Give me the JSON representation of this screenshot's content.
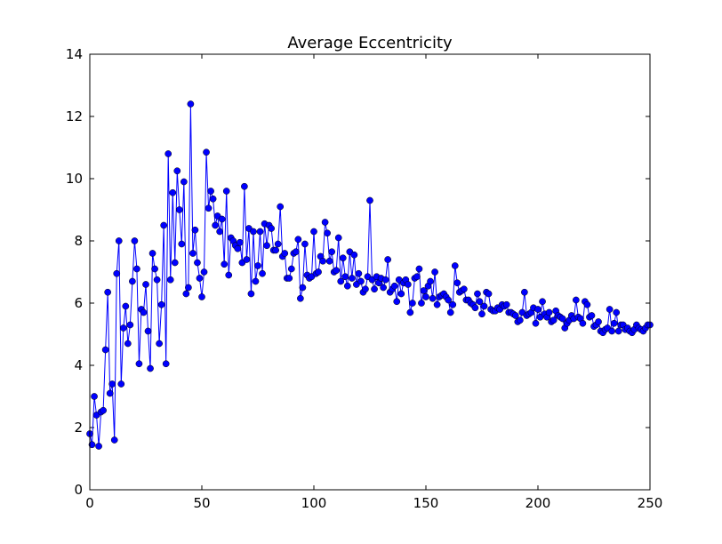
{
  "chart_data": {
    "type": "line",
    "title": "Average Eccentricity",
    "x": [
      0,
      1,
      2,
      3,
      4,
      5,
      6,
      7,
      8,
      9,
      10,
      11,
      12,
      13,
      14,
      15,
      16,
      17,
      18,
      19,
      20,
      21,
      22,
      23,
      24,
      25,
      26,
      27,
      28,
      29,
      30,
      31,
      32,
      33,
      34,
      35,
      36,
      37,
      38,
      39,
      40,
      41,
      42,
      43,
      44,
      45,
      46,
      47,
      48,
      49,
      50,
      51,
      52,
      53,
      54,
      55,
      56,
      57,
      58,
      59,
      60,
      61,
      62,
      63,
      64,
      65,
      66,
      67,
      68,
      69,
      70,
      71,
      72,
      73,
      74,
      75,
      76,
      77,
      78,
      79,
      80,
      81,
      82,
      83,
      84,
      85,
      86,
      87,
      88,
      89,
      90,
      91,
      92,
      93,
      94,
      95,
      96,
      97,
      98,
      99,
      100,
      101,
      102,
      103,
      104,
      105,
      106,
      107,
      108,
      109,
      110,
      111,
      112,
      113,
      114,
      115,
      116,
      117,
      118,
      119,
      120,
      121,
      122,
      123,
      124,
      125,
      126,
      127,
      128,
      129,
      130,
      131,
      132,
      133,
      134,
      135,
      136,
      137,
      138,
      139,
      140,
      141,
      142,
      143,
      144,
      145,
      146,
      147,
      148,
      149,
      150,
      151,
      152,
      153,
      154,
      155,
      156,
      157,
      158,
      159,
      160,
      161,
      162,
      163,
      164,
      165,
      166,
      167,
      168,
      169,
      170,
      171,
      172,
      173,
      174,
      175,
      176,
      177,
      178,
      179,
      180,
      181,
      182,
      183,
      184,
      185,
      186,
      187,
      188,
      189,
      190,
      191,
      192,
      193,
      194,
      195,
      196,
      197,
      198,
      199,
      200,
      201,
      202,
      203,
      204,
      205,
      206,
      207,
      208,
      209,
      210,
      211,
      212,
      213,
      214,
      215,
      216,
      217,
      218,
      219,
      220,
      221,
      222,
      223,
      224,
      225,
      226,
      227,
      228,
      229,
      230,
      231,
      232,
      233,
      234,
      235,
      236,
      237,
      238,
      239,
      240,
      241,
      242,
      243,
      244,
      245,
      246,
      247,
      248,
      249,
      250
    ],
    "series": [
      {
        "color": "#0000ff",
        "values": [
          1.8,
          1.45,
          3.0,
          2.4,
          1.4,
          2.5,
          2.55,
          4.5,
          6.35,
          3.1,
          3.4,
          1.6,
          6.95,
          8.0,
          3.4,
          5.2,
          5.9,
          4.7,
          5.3,
          6.7,
          8.0,
          7.1,
          4.05,
          5.8,
          5.7,
          6.6,
          5.1,
          3.9,
          7.6,
          7.1,
          6.75,
          4.7,
          5.95,
          8.5,
          4.05,
          10.8,
          6.75,
          9.55,
          7.3,
          10.25,
          9.0,
          7.9,
          9.9,
          6.3,
          6.5,
          12.4,
          7.6,
          8.35,
          7.3,
          6.8,
          6.2,
          7.0,
          10.85,
          9.05,
          9.6,
          9.35,
          8.5,
          8.8,
          8.3,
          8.7,
          7.25,
          9.6,
          6.9,
          8.1,
          8.0,
          7.85,
          7.75,
          7.95,
          7.3,
          9.75,
          7.4,
          8.4,
          6.3,
          8.3,
          6.7,
          7.2,
          8.3,
          6.95,
          8.55,
          7.85,
          8.5,
          8.4,
          7.7,
          7.7,
          7.9,
          9.1,
          7.5,
          7.6,
          6.8,
          6.8,
          7.1,
          7.6,
          7.65,
          8.05,
          6.15,
          6.5,
          7.9,
          6.9,
          6.8,
          6.85,
          8.3,
          6.95,
          7.0,
          7.5,
          7.35,
          8.6,
          8.25,
          7.35,
          7.65,
          7.0,
          7.05,
          8.1,
          6.7,
          7.45,
          6.85,
          6.55,
          7.65,
          6.8,
          7.55,
          6.6,
          6.95,
          6.7,
          6.35,
          6.45,
          6.85,
          9.3,
          6.75,
          6.45,
          6.85,
          6.65,
          6.8,
          6.5,
          6.75,
          7.4,
          6.35,
          6.45,
          6.55,
          6.05,
          6.75,
          6.3,
          6.65,
          6.75,
          6.6,
          5.7,
          6.0,
          6.8,
          6.85,
          7.1,
          6.0,
          6.4,
          6.2,
          6.55,
          6.7,
          6.15,
          7.0,
          5.95,
          6.2,
          6.25,
          6.3,
          6.2,
          6.1,
          5.7,
          5.95,
          7.2,
          6.65,
          6.35,
          6.4,
          6.45,
          6.1,
          6.1,
          6.0,
          5.95,
          5.85,
          6.3,
          6.05,
          5.65,
          5.9,
          6.35,
          6.3,
          5.8,
          5.75,
          5.75,
          5.85,
          5.8,
          5.95,
          5.9,
          5.95,
          5.7,
          5.7,
          5.65,
          5.6,
          5.4,
          5.45,
          5.7,
          6.35,
          5.6,
          5.65,
          5.7,
          5.85,
          5.35,
          5.8,
          5.55,
          6.05,
          5.65,
          5.55,
          5.7,
          5.4,
          5.45,
          5.75,
          5.6,
          5.55,
          5.5,
          5.2,
          5.35,
          5.45,
          5.6,
          5.5,
          6.1,
          5.55,
          5.5,
          5.35,
          6.05,
          5.95,
          5.55,
          5.6,
          5.25,
          5.3,
          5.4,
          5.1,
          5.05,
          5.15,
          5.2,
          5.8,
          5.1,
          5.35,
          5.7,
          5.1,
          5.3,
          5.3,
          5.15,
          5.2,
          5.1,
          5.05,
          5.15,
          5.3,
          5.2,
          5.15,
          5.1,
          5.2,
          5.3,
          5.3
        ]
      }
    ],
    "xlim": [
      0,
      250
    ],
    "xticks": [
      0,
      50,
      100,
      150,
      200,
      250
    ],
    "ylim": [
      0,
      14
    ],
    "yticks": [
      0,
      2,
      4,
      6,
      8,
      10,
      12,
      14
    ]
  }
}
